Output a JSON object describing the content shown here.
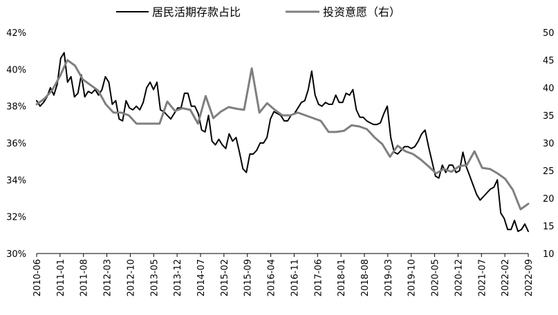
{
  "chart_data": {
    "type": "line",
    "x_labels": [
      "2010-06",
      "2011-01",
      "2011-08",
      "2012-03",
      "2012-10",
      "2013-05",
      "2013-12",
      "2014-07",
      "2015-02",
      "2015-09",
      "2016-04",
      "2016-11",
      "2017-06",
      "2018-01",
      "2018-08",
      "2019-03",
      "2019-10",
      "2020-05",
      "2020-12",
      "2021-07",
      "2022-02",
      "2022-09"
    ],
    "y_left": {
      "min": 30,
      "max": 42,
      "ticks": [
        "42%",
        "40%",
        "38%",
        "36%",
        "34%",
        "32%",
        "30%"
      ]
    },
    "y_right": {
      "min": 10,
      "max": 50,
      "ticks": [
        "50",
        "45",
        "40",
        "35",
        "30",
        "25",
        "20",
        "15",
        "10"
      ]
    },
    "series": [
      {
        "name": "居民活期存款占比",
        "color": "#000000",
        "axis": "left",
        "values": [
          38.3,
          38.0,
          38.2,
          38.5,
          39.0,
          38.6,
          39.2,
          40.6,
          40.9,
          39.3,
          39.6,
          38.5,
          38.7,
          39.7,
          38.5,
          38.8,
          38.7,
          38.9,
          38.6,
          38.9,
          39.6,
          39.3,
          38.1,
          38.3,
          37.3,
          37.2,
          38.3,
          37.9,
          37.8,
          38.0,
          37.8,
          38.2,
          39.0,
          39.3,
          38.9,
          39.3,
          37.8,
          37.7,
          37.5,
          37.3,
          37.6,
          37.9,
          37.9,
          38.7,
          38.7,
          38.0,
          38.0,
          37.6,
          36.7,
          36.6,
          37.5,
          36.1,
          35.9,
          36.2,
          35.9,
          35.7,
          36.5,
          36.1,
          36.3,
          35.5,
          34.6,
          34.4,
          35.4,
          35.4,
          35.6,
          36.0,
          36.0,
          36.3,
          37.3,
          37.7,
          37.6,
          37.5,
          37.2,
          37.2,
          37.5,
          37.6,
          37.9,
          38.2,
          38.3,
          38.9,
          39.9,
          38.6,
          38.1,
          38.0,
          38.2,
          38.1,
          38.1,
          38.6,
          38.2,
          38.2,
          38.7,
          38.6,
          38.9,
          37.8,
          37.4,
          37.4,
          37.2,
          37.1,
          37.0,
          37.0,
          37.1,
          37.6,
          38.0,
          36.3,
          35.5,
          35.4,
          35.6,
          35.8,
          35.8,
          35.7,
          35.8,
          36.1,
          36.5,
          36.7,
          35.8,
          35.0,
          34.2,
          34.1,
          34.8,
          34.4,
          34.8,
          34.8,
          34.4,
          34.5,
          35.5,
          34.7,
          34.2,
          33.7,
          33.2,
          32.9,
          33.1,
          33.3,
          33.5,
          33.6,
          34.0,
          32.2,
          31.9,
          31.3,
          31.3,
          31.8,
          31.2,
          31.3,
          31.6,
          31.2
        ]
      },
      {
        "name": "投资意愿（右）",
        "color": "#7f7f7f",
        "axis": "right",
        "values": [
          37.0,
          38.0,
          39.5,
          42.0,
          45.0,
          44.0,
          41.5,
          40.5,
          39.5,
          37.0,
          35.5,
          35.5,
          35.0,
          33.5,
          33.5,
          33.5,
          33.5,
          37.5,
          35.8,
          36.3,
          36.0,
          33.5,
          38.5,
          34.5,
          35.7,
          36.5,
          36.2,
          36.0,
          43.5,
          35.5,
          37.2,
          36.0,
          35.0,
          35.0,
          35.5,
          35.0,
          34.5,
          34.0,
          32.0,
          32.0,
          32.2,
          33.2,
          33.0,
          32.5,
          31.0,
          29.8,
          27.5,
          29.5,
          28.5,
          28.0,
          27.0,
          25.8,
          24.5,
          25.3,
          24.8,
          25.8,
          26.0,
          28.5,
          25.5,
          25.3,
          24.5,
          23.5,
          21.5,
          18.0,
          19.0
        ]
      }
    ]
  }
}
